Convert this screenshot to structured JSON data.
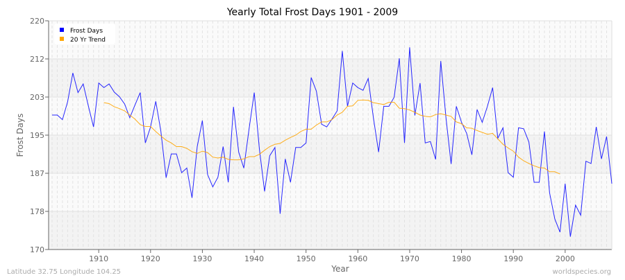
{
  "chart_data": {
    "type": "line",
    "title": "Yearly Total Frost Days 1901 - 2009",
    "xlabel": "Year",
    "ylabel": "Frost Days",
    "xlim": [
      1901,
      2009
    ],
    "ylim": [
      170,
      220
    ],
    "y_ticks": [
      "170",
      "178",
      "187",
      "195",
      "203",
      "212",
      "220"
    ],
    "x_ticks": [
      "1910",
      "1920",
      "1930",
      "1940",
      "1950",
      "1960",
      "1970",
      "1980",
      "1990",
      "2000"
    ],
    "grid": true,
    "legend_position": "top-left",
    "series": [
      {
        "name": "Frost Days",
        "color": "#0000ff",
        "x_start": 1901,
        "values": [
          199.4,
          199.4,
          198.4,
          202.3,
          208.6,
          204.3,
          206.2,
          201.4,
          196.8,
          206.4,
          205.4,
          206.2,
          204.4,
          203.4,
          201.8,
          198.8,
          201.6,
          204.3,
          193.3,
          196.8,
          202.4,
          195.8,
          185.7,
          190.9,
          190.9,
          186.8,
          187.8,
          181.3,
          192.5,
          198.2,
          186.4,
          183.7,
          185.8,
          192.5,
          184.7,
          201.2,
          191.3,
          187.8,
          196.3,
          204.3,
          192.0,
          182.7,
          190.5,
          192.3,
          177.8,
          189.8,
          184.7,
          192.3,
          192.3,
          193.3,
          207.6,
          204.6,
          197.4,
          196.8,
          198.5,
          200.3,
          213.4,
          201.3,
          206.4,
          205.4,
          204.8,
          207.4,
          198.8,
          191.3,
          201.3,
          201.3,
          203.3,
          211.8,
          193.3,
          214.2,
          199.3,
          206.4,
          193.3,
          193.6,
          189.7,
          211.2,
          198.8,
          188.7,
          201.3,
          197.8,
          195.4,
          190.7,
          200.6,
          197.8,
          201.3,
          205.4,
          194.3,
          196.6,
          186.8,
          185.8,
          196.6,
          196.4,
          193.5,
          184.7,
          184.7,
          195.8,
          182.4,
          176.7,
          173.8,
          184.4,
          172.8,
          179.7,
          177.5,
          189.3,
          188.8,
          196.8,
          189.8,
          194.7,
          184.4
        ]
      },
      {
        "name": "20 Yr Trend",
        "color": "#ffa500",
        "x_start": 1911,
        "values": [
          202.1,
          201.9,
          201.2,
          200.8,
          200.3,
          199.4,
          198.5,
          197.3,
          196.9,
          196.9,
          195.8,
          194.8,
          193.9,
          193.3,
          192.5,
          192.5,
          192.1,
          191.4,
          191.0,
          191.5,
          191.2,
          190.2,
          190.0,
          190.2,
          189.7,
          189.6,
          189.6,
          189.8,
          190.3,
          190.3,
          190.8,
          191.7,
          192.5,
          193.0,
          193.2,
          193.9,
          194.5,
          195.0,
          195.8,
          196.3,
          196.3,
          197.2,
          197.9,
          197.9,
          198.4,
          199.4,
          200.0,
          201.3,
          201.4,
          202.6,
          202.7,
          202.6,
          202.1,
          201.9,
          201.7,
          202.2,
          202.2,
          200.9,
          200.8,
          200.5,
          200.0,
          199.4,
          199.1,
          199.0,
          199.5,
          199.7,
          199.4,
          199.1,
          197.9,
          197.5,
          196.6,
          196.5,
          196.0,
          195.6,
          195.2,
          195.4,
          194.2,
          193.0,
          192.2,
          191.5,
          190.2,
          189.4,
          188.8,
          188.3,
          187.9,
          187.8,
          187.0,
          187.0,
          186.5
        ]
      }
    ]
  },
  "footer": {
    "location": "Latitude 32.75 Longitude 104.25",
    "source": "worldspecies.org"
  }
}
